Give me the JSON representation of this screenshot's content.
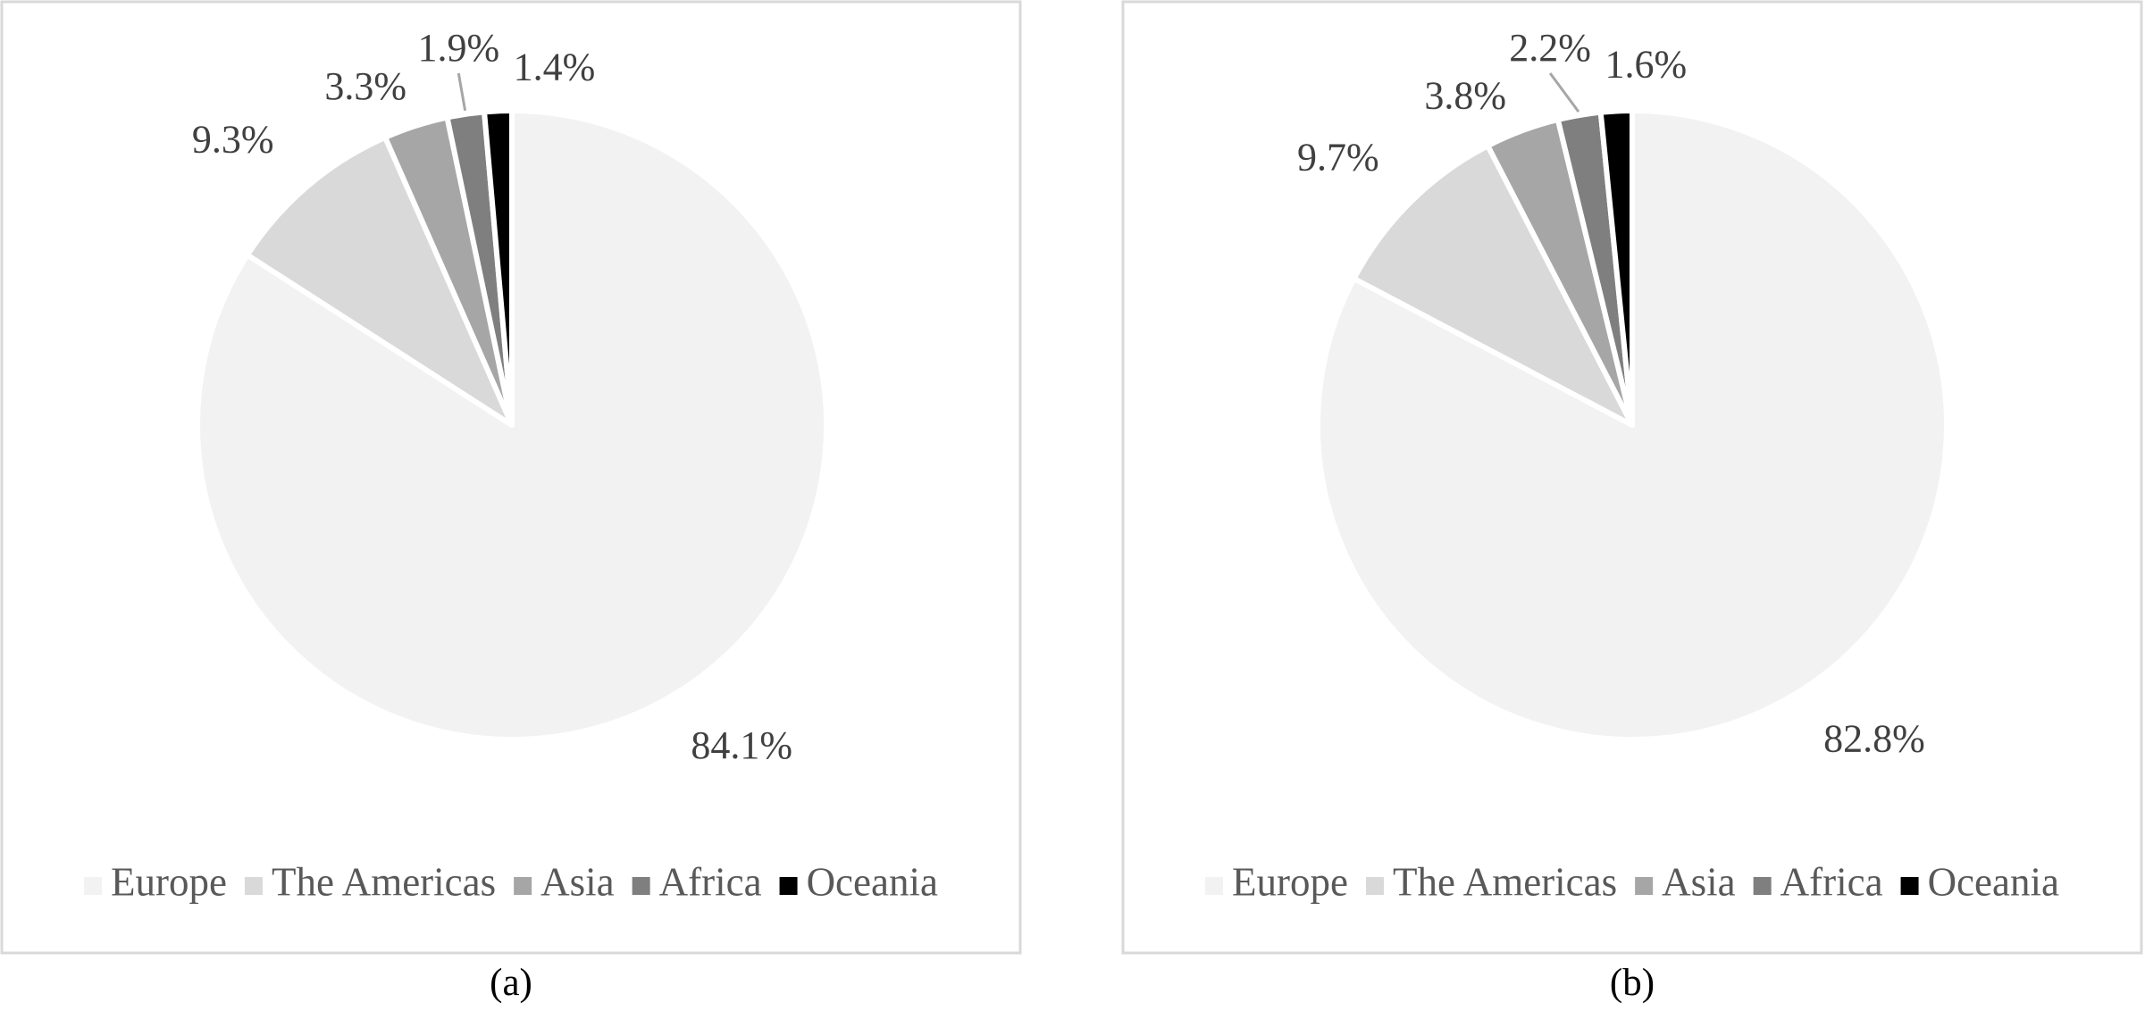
{
  "chart_data": [
    {
      "type": "pie",
      "caption": "(a)",
      "categories": [
        "Europe",
        "The Americas",
        "Asia",
        "Africa",
        "Oceania"
      ],
      "values": [
        84.1,
        9.3,
        3.3,
        1.9,
        1.4
      ],
      "value_labels": [
        "84.1%",
        "9.3%",
        "3.3%",
        "1.9%",
        "1.4%"
      ],
      "colors": [
        "#f2f2f2",
        "#d9d9d9",
        "#a6a6a6",
        "#7f7f7f",
        "#000000"
      ]
    },
    {
      "type": "pie",
      "caption": "(b)",
      "categories": [
        "Europe",
        "The Americas",
        "Asia",
        "Africa",
        "Oceania"
      ],
      "values": [
        82.8,
        9.7,
        3.8,
        2.2,
        1.6
      ],
      "value_labels": [
        "82.8%",
        "9.7%",
        "3.8%",
        "2.2%",
        "1.6%"
      ],
      "colors": [
        "#f2f2f2",
        "#d9d9d9",
        "#a6a6a6",
        "#7f7f7f",
        "#000000"
      ]
    }
  ]
}
